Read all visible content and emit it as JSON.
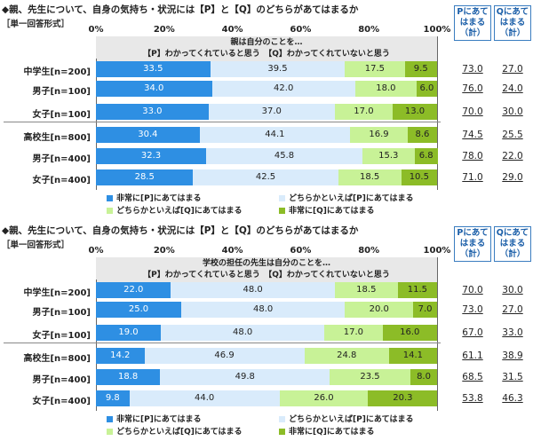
{
  "colors": [
    "#2e8fe3",
    "#d9ebfb",
    "#c8f297",
    "#8cbc27"
  ],
  "text_colors": [
    "#ffffff",
    "#222222",
    "#222222",
    "#222222"
  ],
  "chart_data": [
    {
      "type": "bar",
      "stacked": true,
      "orientation": "horizontal",
      "title": "◆親、先生について、自身の気持ち・状況には【P】と【Q】のどちらがあてはまるか",
      "subtitle": "［単一回答形式］",
      "annotation": [
        "親は自分のことを…",
        "【P】わかってくれていると思う　【Q】わかってくれていないと思う"
      ],
      "xlim": [
        0,
        100
      ],
      "xticks": [
        "0%",
        "20%",
        "40%",
        "60%",
        "80%",
        "100%"
      ],
      "categories": [
        "中学生[n=200]",
        "男子[n=100]",
        "女子[n=100]",
        "高校生[n=800]",
        "男子[n=400]",
        "女子[n=400]"
      ],
      "series": [
        {
          "name": "非常に[P]にあてはまる",
          "values": [
            33.5,
            34.0,
            33.0,
            30.4,
            32.3,
            28.5
          ]
        },
        {
          "name": "どちらかといえば[P]にあてはまる",
          "values": [
            39.5,
            42.0,
            37.0,
            44.1,
            45.8,
            42.5
          ]
        },
        {
          "name": "どちらかといえば[Q]にあてはまる",
          "values": [
            17.5,
            18.0,
            17.0,
            16.9,
            15.3,
            18.5
          ]
        },
        {
          "name": "非常に[Q]にあてはまる",
          "values": [
            9.5,
            6.0,
            13.0,
            8.6,
            6.8,
            10.5
          ]
        }
      ],
      "summary_headers": [
        [
          "Pにあて",
          "はまる",
          "（計）"
        ],
        [
          "Qにあて",
          "はまる",
          "（計）"
        ]
      ],
      "p_total": [
        "73.0",
        "76.0",
        "70.0",
        "74.5",
        "78.0",
        "71.0"
      ],
      "q_total": [
        "27.0",
        "24.0",
        "30.0",
        "25.5",
        "22.0",
        "29.0"
      ]
    },
    {
      "type": "bar",
      "stacked": true,
      "orientation": "horizontal",
      "title": "◆親、先生について、自身の気持ち・状況には【P】と【Q】のどちらがあてはまるか",
      "subtitle": "［単一回答形式］",
      "annotation": [
        "学校の担任の先生は自分のことを…",
        "【P】わかってくれていると思う　【Q】わかってくれていないと思う"
      ],
      "xlim": [
        0,
        100
      ],
      "xticks": [
        "0%",
        "20%",
        "40%",
        "60%",
        "80%",
        "100%"
      ],
      "categories": [
        "中学生[n=200]",
        "男子[n=100]",
        "女子[n=100]",
        "高校生[n=800]",
        "男子[n=400]",
        "女子[n=400]"
      ],
      "series": [
        {
          "name": "非常に[P]にあてはまる",
          "values": [
            22.0,
            25.0,
            19.0,
            14.2,
            18.8,
            9.8
          ]
        },
        {
          "name": "どちらかといえば[P]にあてはまる",
          "values": [
            48.0,
            48.0,
            48.0,
            46.9,
            49.8,
            44.0
          ]
        },
        {
          "name": "どちらかといえば[Q]にあてはまる",
          "values": [
            18.5,
            20.0,
            17.0,
            24.8,
            23.5,
            26.0
          ]
        },
        {
          "name": "非常に[Q]にあてはまる",
          "values": [
            11.5,
            7.0,
            16.0,
            14.1,
            8.0,
            20.3
          ]
        }
      ],
      "summary_headers": [
        [
          "Pにあて",
          "はまる",
          "（計）"
        ],
        [
          "Qにあて",
          "はまる",
          "（計）"
        ]
      ],
      "p_total": [
        "70.0",
        "73.0",
        "67.0",
        "61.1",
        "68.5",
        "53.8"
      ],
      "q_total": [
        "30.0",
        "27.0",
        "33.0",
        "38.9",
        "31.5",
        "46.3"
      ]
    }
  ]
}
